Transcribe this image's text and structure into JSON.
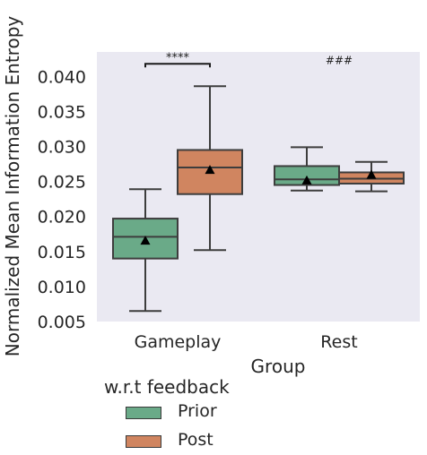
{
  "chart_data": {
    "type": "box",
    "xlabel": "Group",
    "ylabel": "Normalized Mean Information Entropy",
    "ylim": [
      0.005,
      0.0435
    ],
    "yticks": [
      "0.005",
      "0.010",
      "0.015",
      "0.020",
      "0.025",
      "0.030",
      "0.035",
      "0.040"
    ],
    "categories": [
      "Gameplay",
      "Rest"
    ],
    "legend": {
      "title": "w.r.t feedback",
      "placement": "bottom-left",
      "entries": [
        {
          "label": "Prior",
          "color": "#6aaa88"
        },
        {
          "label": "Post",
          "color": "#d08560"
        }
      ]
    },
    "series": [
      {
        "name": "Prior",
        "color": "#6aaa88",
        "boxes": [
          {
            "category": "Gameplay",
            "whisker_low": 0.0065,
            "q1": 0.014,
            "median": 0.0171,
            "q3": 0.0197,
            "whisker_high": 0.0239,
            "mean": 0.0165
          },
          {
            "category": "Rest",
            "whisker_low": 0.0237,
            "q1": 0.0245,
            "median": 0.0253,
            "q3": 0.0272,
            "whisker_high": 0.0299,
            "mean": 0.0251
          }
        ]
      },
      {
        "name": "Post",
        "color": "#d08560",
        "boxes": [
          {
            "category": "Gameplay",
            "whisker_low": 0.0152,
            "q1": 0.0232,
            "median": 0.027,
            "q3": 0.0295,
            "whisker_high": 0.0386,
            "mean": 0.0266
          },
          {
            "category": "Rest",
            "whisker_low": 0.0236,
            "q1": 0.0247,
            "median": 0.0254,
            "q3": 0.0263,
            "whisker_high": 0.0278,
            "mean": 0.0259
          }
        ]
      }
    ],
    "annotations": [
      {
        "text": "****",
        "category": "Gameplay",
        "type": "bracket",
        "y": 0.0418
      },
      {
        "text": "###",
        "category": "Rest",
        "type": "text",
        "y": 0.0418
      }
    ],
    "grid": false
  }
}
